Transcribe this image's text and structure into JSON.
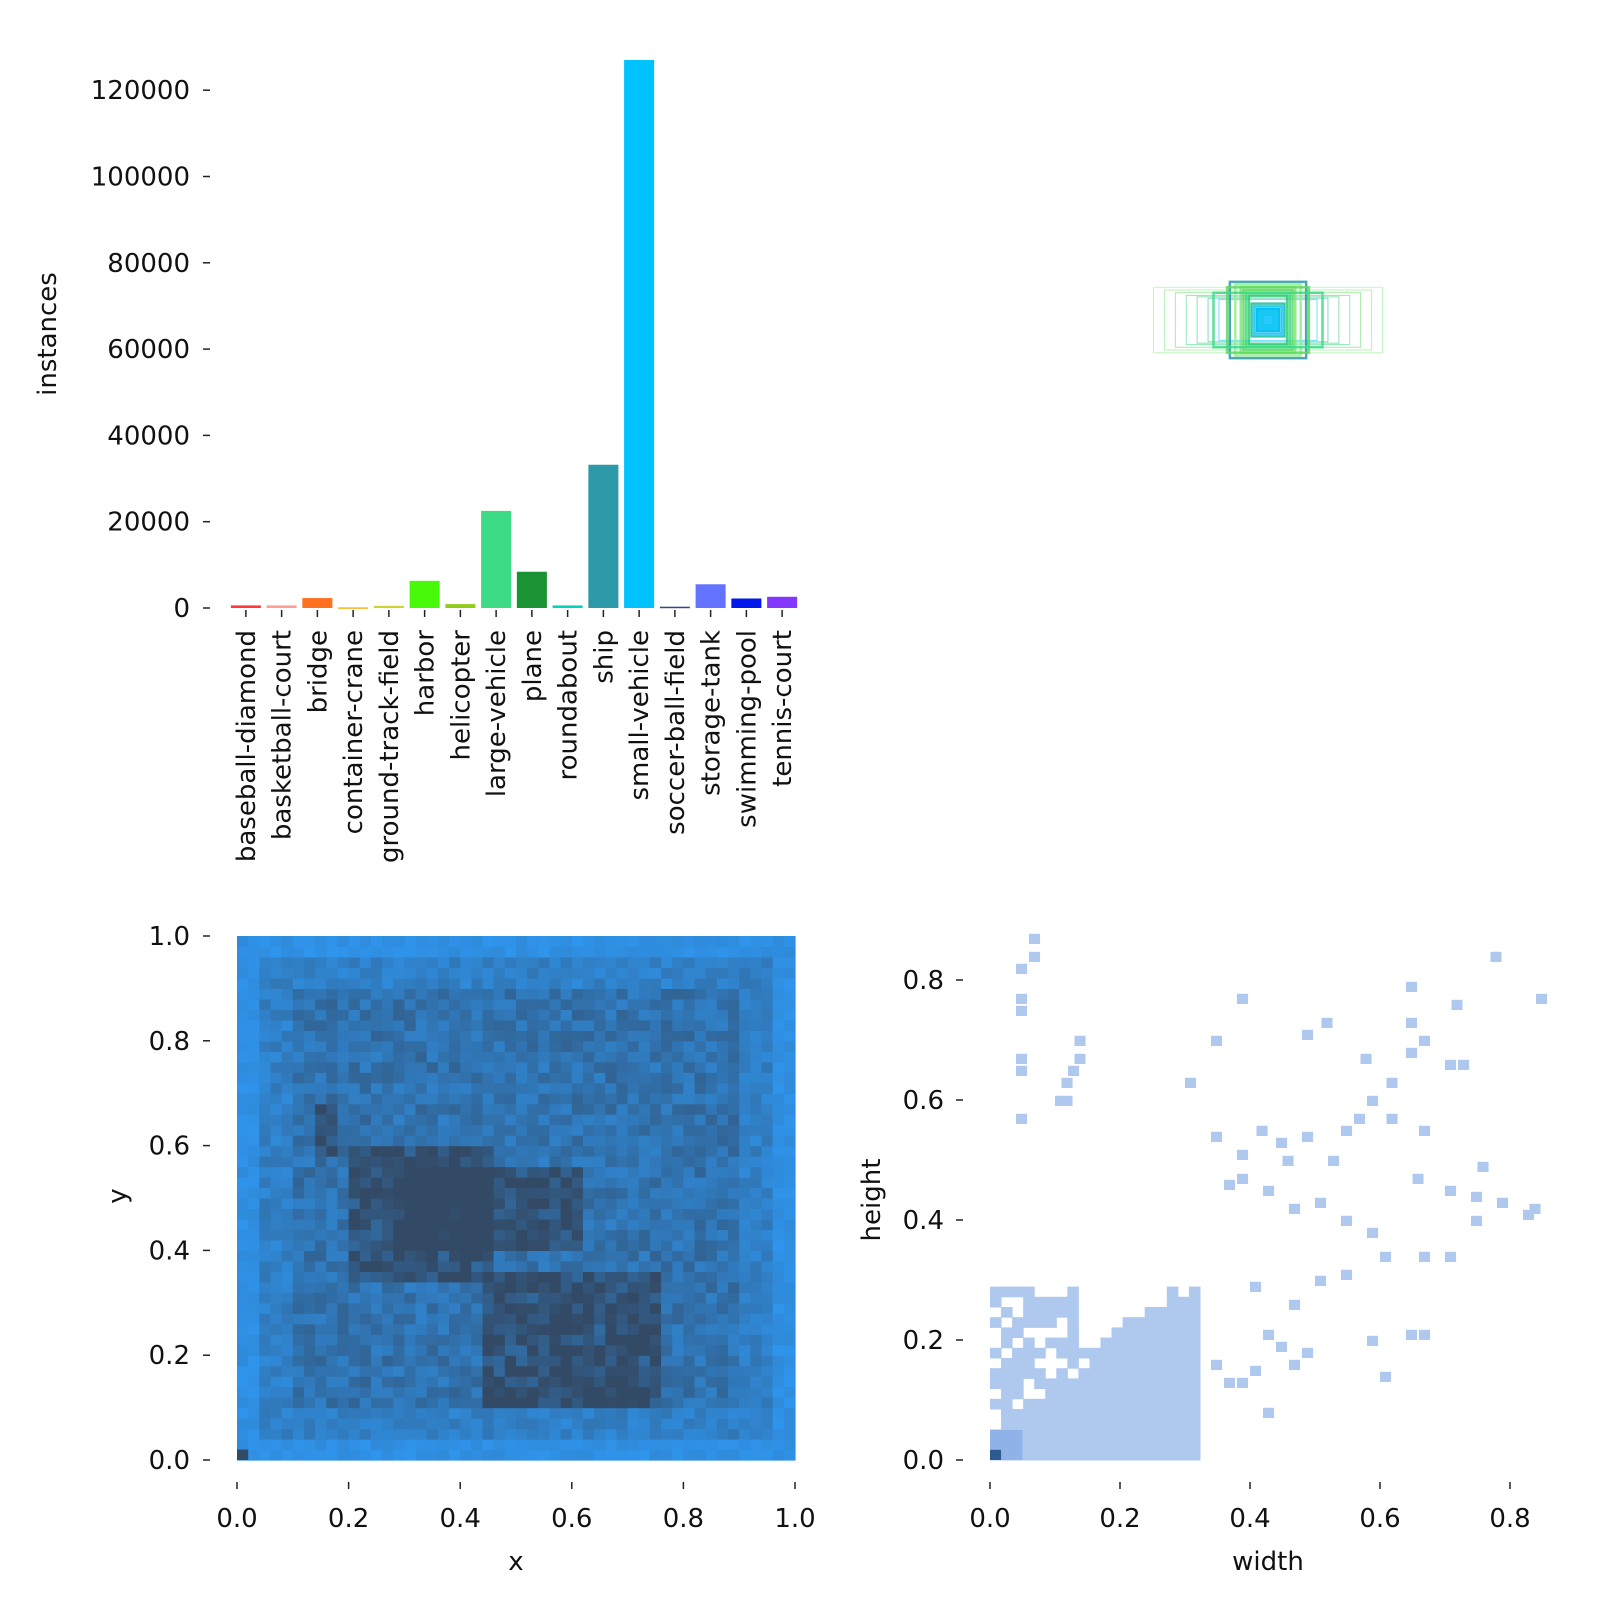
{
  "chart_data": [
    {
      "type": "bar",
      "name": "class-instances",
      "ylabel": "instances",
      "ylim": [
        0,
        127000
      ],
      "yticks": [
        0,
        20000,
        40000,
        60000,
        80000,
        100000,
        120000
      ],
      "ytick_labels": [
        "0",
        "20000",
        "40000",
        "60000",
        "80000",
        "100000",
        "120000"
      ],
      "categories": [
        "baseball-diamond",
        "basketball-court",
        "bridge",
        "container-crane",
        "ground-track-field",
        "harbor",
        "helicopter",
        "large-vehicle",
        "plane",
        "roundabout",
        "ship",
        "small-vehicle",
        "soccer-ball-field",
        "storage-tank",
        "swimming-pool",
        "tennis-court"
      ],
      "values": [
        600,
        600,
        2300,
        150,
        500,
        6300,
        900,
        22500,
        8400,
        600,
        33200,
        127000,
        300,
        5500,
        2200,
        2600
      ],
      "colors": [
        "#ff3838",
        "#ff9d97",
        "#ff701f",
        "#ffb21d",
        "#cfd231",
        "#48f90a",
        "#92cc17",
        "#3ddb86",
        "#1a9334",
        "#00d4bb",
        "#2c99a8",
        "#00c2ff",
        "#344593",
        "#6473ff",
        "#0018ec",
        "#8438ff"
      ]
    },
    {
      "type": "box-overlay",
      "name": "label-boxes",
      "description_free": true,
      "boxes_wh": [
        [
          0.42,
          0.12
        ],
        [
          0.38,
          0.11
        ],
        [
          0.34,
          0.1
        ],
        [
          0.3,
          0.09
        ],
        [
          0.26,
          0.085
        ],
        [
          0.22,
          0.08
        ],
        [
          0.18,
          0.075
        ],
        [
          0.14,
          0.14
        ],
        [
          0.12,
          0.13
        ],
        [
          0.1,
          0.12
        ],
        [
          0.09,
          0.11
        ],
        [
          0.08,
          0.1
        ],
        [
          0.07,
          0.09
        ],
        [
          0.06,
          0.06
        ],
        [
          0.05,
          0.05
        ],
        [
          0.04,
          0.04
        ],
        [
          0.03,
          0.03
        ],
        [
          0.02,
          0.02
        ],
        [
          0.15,
          0.12
        ],
        [
          0.2,
          0.1
        ]
      ],
      "colors": [
        "#90ee90",
        "#7fe57f",
        "#5fd85f",
        "#3ddb86",
        "#2ecc71",
        "#1abc9c",
        "#00c2ff",
        "#2c99a8"
      ]
    },
    {
      "type": "heatmap",
      "name": "xy-histogram",
      "xlabel": "x",
      "ylabel": "y",
      "xlim": [
        0,
        1
      ],
      "ylim": [
        0,
        1
      ],
      "xticks": [
        "0.0",
        "0.2",
        "0.4",
        "0.6",
        "0.8",
        "1.0"
      ],
      "yticks": [
        "0.0",
        "0.2",
        "0.4",
        "0.6",
        "0.8",
        "1.0"
      ],
      "bins": 50,
      "dense_regions": [
        {
          "x": [
            0.3,
            0.62
          ],
          "y": [
            0.4,
            0.55
          ]
        },
        {
          "x": [
            0.45,
            0.75
          ],
          "y": [
            0.1,
            0.35
          ]
        },
        {
          "x": [
            0.15,
            0.18
          ],
          "y": [
            0.58,
            0.68
          ]
        },
        {
          "x": [
            0.2,
            0.45
          ],
          "y": [
            0.35,
            0.6
          ]
        }
      ],
      "low_color": "#2e9fff",
      "high_color": "#334a66"
    },
    {
      "type": "heatmap",
      "name": "wh-histogram",
      "xlabel": "width",
      "ylabel": "height",
      "xlim": [
        0,
        0.85
      ],
      "ylim": [
        0,
        0.87
      ],
      "xticks": [
        "0.0",
        "0.2",
        "0.4",
        "0.6",
        "0.8"
      ],
      "yticks": [
        "0.0",
        "0.2",
        "0.4",
        "0.6",
        "0.8"
      ],
      "fill_color": "#aec8ee",
      "peak_color": "#2e5a92",
      "core_bounds": {
        "width": [
          0,
          0.32
        ],
        "height": [
          0,
          0.28
        ]
      },
      "scatter_cells": [
        [
          0.06,
          0.86
        ],
        [
          0.06,
          0.83
        ],
        [
          0.04,
          0.81
        ],
        [
          0.04,
          0.76
        ],
        [
          0.04,
          0.74
        ],
        [
          0.04,
          0.66
        ],
        [
          0.04,
          0.64
        ],
        [
          0.04,
          0.56
        ],
        [
          0.13,
          0.69
        ],
        [
          0.13,
          0.66
        ],
        [
          0.12,
          0.64
        ],
        [
          0.11,
          0.62
        ],
        [
          0.11,
          0.59
        ],
        [
          0.1,
          0.59
        ],
        [
          0.77,
          0.83
        ],
        [
          0.84,
          0.76
        ],
        [
          0.64,
          0.78
        ],
        [
          0.71,
          0.75
        ],
        [
          0.38,
          0.76
        ],
        [
          0.48,
          0.7
        ],
        [
          0.51,
          0.72
        ],
        [
          0.64,
          0.72
        ],
        [
          0.66,
          0.69
        ],
        [
          0.34,
          0.69
        ],
        [
          0.7,
          0.65
        ],
        [
          0.72,
          0.65
        ],
        [
          0.64,
          0.67
        ],
        [
          0.57,
          0.66
        ],
        [
          0.3,
          0.62
        ],
        [
          0.61,
          0.62
        ],
        [
          0.58,
          0.59
        ],
        [
          0.56,
          0.56
        ],
        [
          0.61,
          0.56
        ],
        [
          0.54,
          0.54
        ],
        [
          0.41,
          0.54
        ],
        [
          0.44,
          0.52
        ],
        [
          0.48,
          0.53
        ],
        [
          0.66,
          0.54
        ],
        [
          0.34,
          0.53
        ],
        [
          0.38,
          0.5
        ],
        [
          0.45,
          0.49
        ],
        [
          0.52,
          0.49
        ],
        [
          0.75,
          0.48
        ],
        [
          0.65,
          0.46
        ],
        [
          0.7,
          0.44
        ],
        [
          0.78,
          0.42
        ],
        [
          0.74,
          0.43
        ],
        [
          0.82,
          0.4
        ],
        [
          0.83,
          0.41
        ],
        [
          0.74,
          0.39
        ],
        [
          0.7,
          0.33
        ],
        [
          0.66,
          0.33
        ],
        [
          0.58,
          0.37
        ],
        [
          0.6,
          0.33
        ],
        [
          0.54,
          0.39
        ],
        [
          0.5,
          0.42
        ],
        [
          0.46,
          0.41
        ],
        [
          0.42,
          0.44
        ],
        [
          0.38,
          0.46
        ],
        [
          0.36,
          0.45
        ],
        [
          0.54,
          0.3
        ],
        [
          0.5,
          0.29
        ],
        [
          0.4,
          0.28
        ],
        [
          0.46,
          0.25
        ],
        [
          0.42,
          0.2
        ],
        [
          0.44,
          0.18
        ],
        [
          0.46,
          0.15
        ],
        [
          0.58,
          0.19
        ],
        [
          0.64,
          0.2
        ],
        [
          0.66,
          0.2
        ],
        [
          0.48,
          0.17
        ],
        [
          0.4,
          0.14
        ],
        [
          0.38,
          0.12
        ],
        [
          0.42,
          0.07
        ],
        [
          0.36,
          0.12
        ],
        [
          0.34,
          0.15
        ],
        [
          0.6,
          0.13
        ]
      ]
    }
  ]
}
